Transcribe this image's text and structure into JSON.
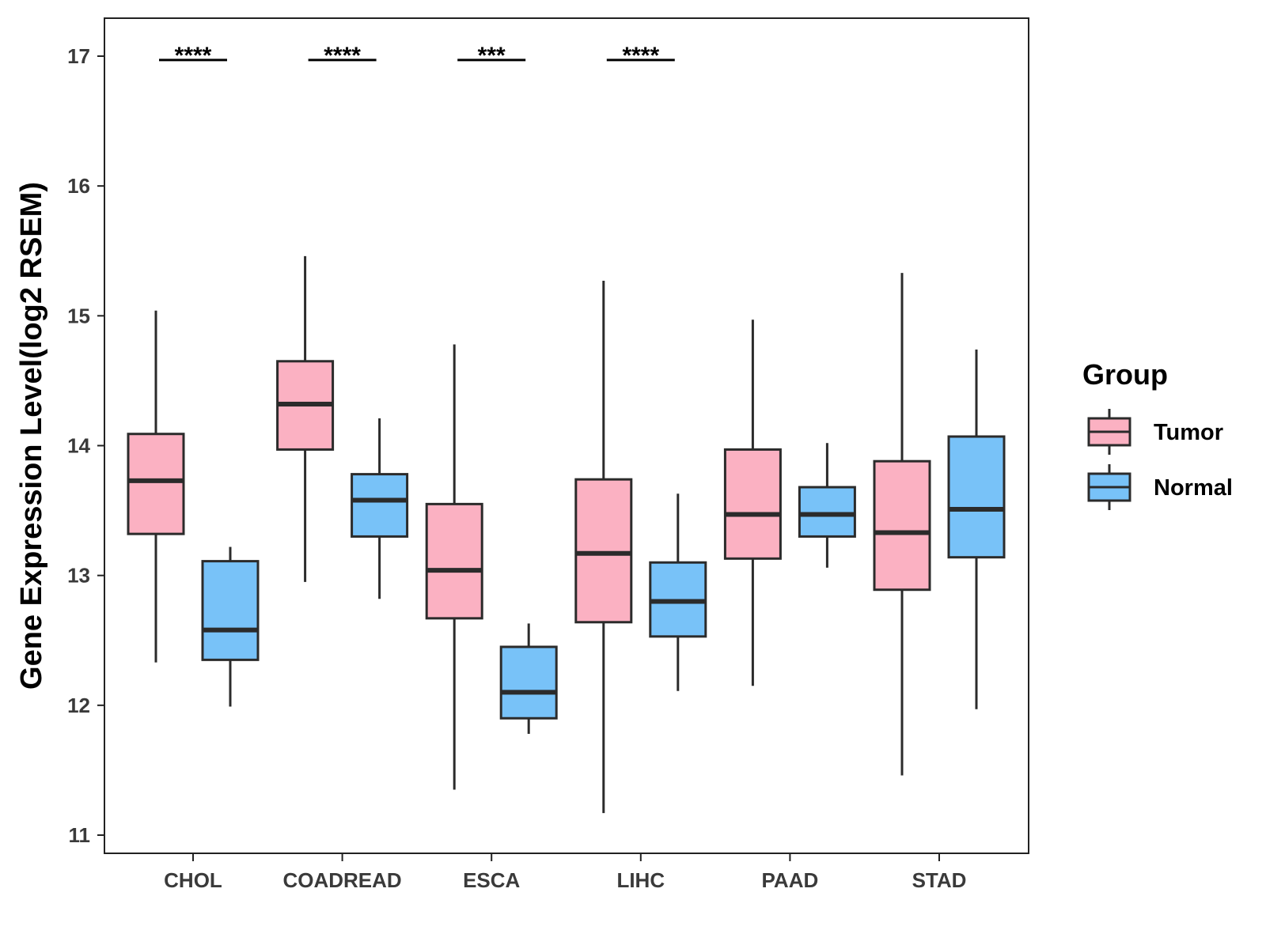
{
  "chart_data": {
    "type": "boxplot",
    "title": "",
    "xlabel": "",
    "ylabel": "Gene Expression Level(log2 RSEM)",
    "ylim": [
      10.86,
      17.3
    ],
    "yticks": [
      11,
      12,
      13,
      14,
      15,
      16,
      17
    ],
    "categories": [
      "CHOL",
      "COADREAD",
      "ESCA",
      "LIHC",
      "PAAD",
      "STAD"
    ],
    "grid": false,
    "legend": {
      "title": "Group",
      "position": "right",
      "entries": [
        {
          "label": "Tumor",
          "color": "#FBB1C2"
        },
        {
          "label": "Normal",
          "color": "#78C2F8"
        }
      ]
    },
    "series": [
      {
        "name": "Tumor",
        "color": "#FBB1C2",
        "boxes": [
          {
            "category": "CHOL",
            "min": 12.33,
            "q1": 13.32,
            "median": 13.73,
            "q3": 14.09,
            "max": 15.04
          },
          {
            "category": "COADREAD",
            "min": 12.95,
            "q1": 13.97,
            "median": 14.32,
            "q3": 14.65,
            "max": 15.46
          },
          {
            "category": "ESCA",
            "min": 11.35,
            "q1": 12.67,
            "median": 13.04,
            "q3": 13.55,
            "max": 14.78
          },
          {
            "category": "LIHC",
            "min": 11.17,
            "q1": 12.64,
            "median": 13.17,
            "q3": 13.74,
            "max": 15.27
          },
          {
            "category": "PAAD",
            "min": 12.15,
            "q1": 13.13,
            "median": 13.47,
            "q3": 13.97,
            "max": 14.97
          },
          {
            "category": "STAD",
            "min": 11.46,
            "q1": 12.89,
            "median": 13.33,
            "q3": 13.88,
            "max": 15.33
          }
        ]
      },
      {
        "name": "Normal",
        "color": "#78C2F8",
        "boxes": [
          {
            "category": "CHOL",
            "min": 11.99,
            "q1": 12.35,
            "median": 12.58,
            "q3": 13.11,
            "max": 13.22
          },
          {
            "category": "COADREAD",
            "min": 12.82,
            "q1": 13.3,
            "median": 13.58,
            "q3": 13.78,
            "max": 14.21
          },
          {
            "category": "ESCA",
            "min": 11.78,
            "q1": 11.9,
            "median": 12.1,
            "q3": 12.45,
            "max": 12.63
          },
          {
            "category": "LIHC",
            "min": 12.11,
            "q1": 12.53,
            "median": 12.8,
            "q3": 13.1,
            "max": 13.63
          },
          {
            "category": "PAAD",
            "min": 13.06,
            "q1": 13.3,
            "median": 13.47,
            "q3": 13.68,
            "max": 14.02
          },
          {
            "category": "STAD",
            "min": 11.97,
            "q1": 13.14,
            "median": 13.51,
            "q3": 14.07,
            "max": 14.74
          }
        ]
      }
    ],
    "annotations": [
      {
        "category": "CHOL",
        "label": "****",
        "y": 16.97
      },
      {
        "category": "COADREAD",
        "label": "****",
        "y": 16.97
      },
      {
        "category": "ESCA",
        "label": "***",
        "y": 16.97
      },
      {
        "category": "LIHC",
        "label": "****",
        "y": 16.97
      }
    ]
  }
}
